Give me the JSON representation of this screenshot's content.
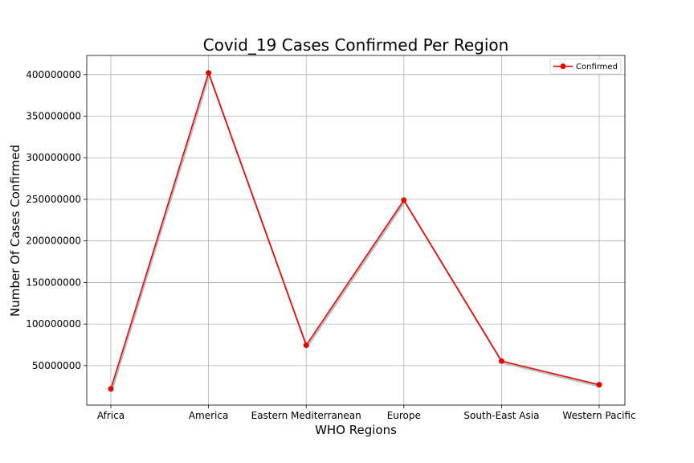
{
  "chart_data": {
    "type": "line",
    "title": "Covid_19 Cases Confirmed Per Region",
    "xlabel": "WHO Regions",
    "ylabel": "Number Of Cases Confirmed",
    "categories": [
      "Africa",
      "America",
      "Eastern Mediterranean",
      "Europe",
      "South-East Asia",
      "Western Pacific"
    ],
    "series": [
      {
        "name": "Confirmed",
        "values": [
          22000000,
          402000000,
          74500000,
          249000000,
          55500000,
          27000000
        ],
        "color": "#e60000",
        "marker": "circle"
      }
    ],
    "ylim": [
      2500000,
      423000000
    ],
    "yticks": [
      50000000,
      100000000,
      150000000,
      200000000,
      250000000,
      300000000,
      350000000,
      400000000
    ],
    "grid": true,
    "legend": "top-right"
  }
}
